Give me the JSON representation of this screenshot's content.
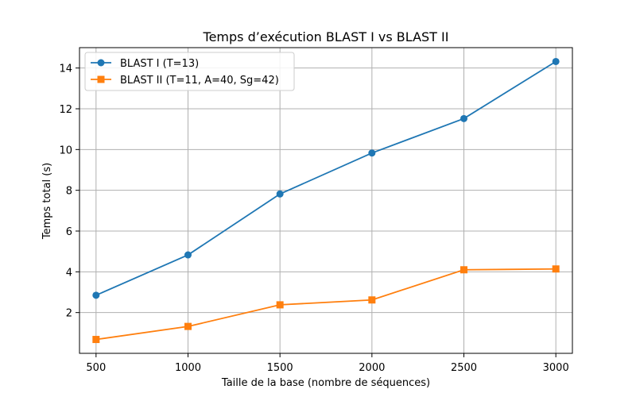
{
  "chart_data": {
    "type": "line",
    "title": "Temps d’exécution BLAST I vs BLAST II",
    "xlabel": "Taille de la base (nombre de séquences)",
    "ylabel": "Temps total (s)",
    "x": [
      500,
      1000,
      1500,
      2000,
      2500,
      3000
    ],
    "xlim": [
      410,
      3090
    ],
    "ylim": [
      0.0,
      15.0
    ],
    "xticks": [
      500,
      1000,
      1500,
      2000,
      2500,
      3000
    ],
    "yticks": [
      2,
      4,
      6,
      8,
      10,
      12,
      14
    ],
    "grid": true,
    "legend_position": "upper left",
    "series": [
      {
        "name": "BLAST I (T=13)",
        "color": "#1f77b4",
        "marker": "circle",
        "values": [
          2.85,
          4.83,
          7.82,
          9.83,
          11.52,
          14.32
        ]
      },
      {
        "name": "BLAST II (T=11, A=40, Sg=42)",
        "color": "#ff7f0e",
        "marker": "square",
        "values": [
          0.68,
          1.32,
          2.38,
          2.62,
          4.1,
          4.14
        ]
      }
    ]
  }
}
